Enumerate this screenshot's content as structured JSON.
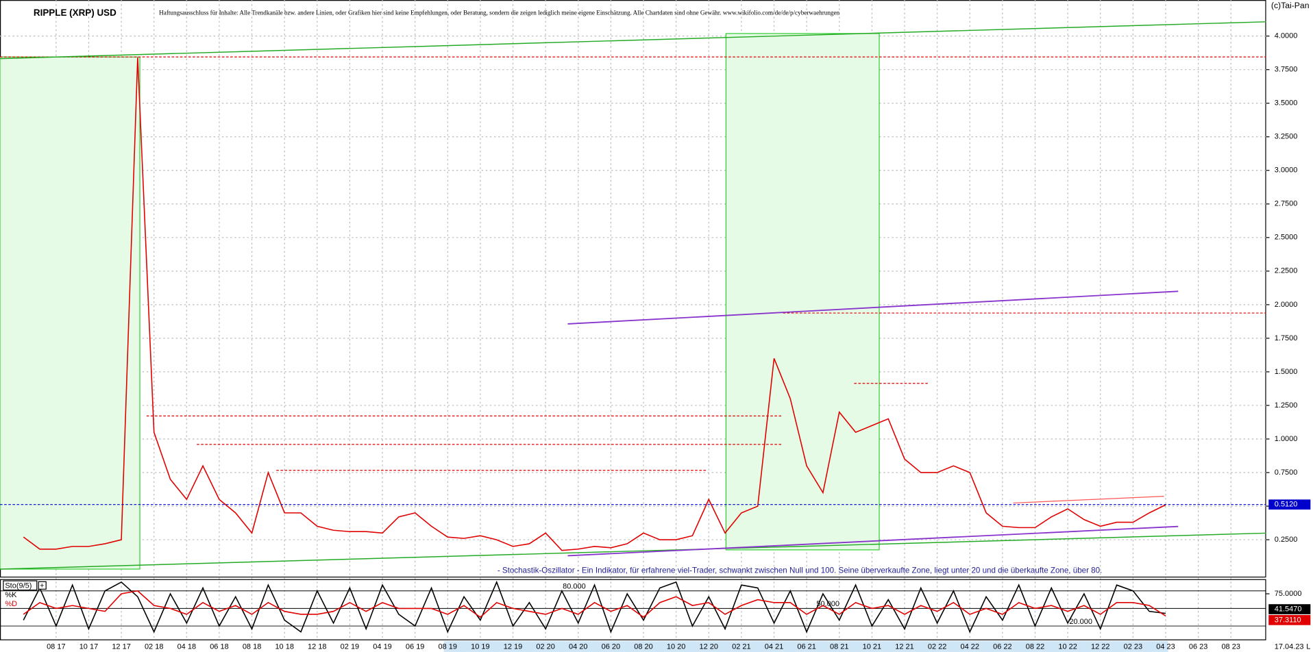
{
  "chart_data": [
    {
      "type": "line",
      "title": "RIPPLE (XRP) USD",
      "subtitle": "Haftungsausschluss für Inhalte: Alle Trendkanäle bzw. andere Linien, oder Grafiken hier sind keine Empfehlungen, oder Beratung, sondern die zeigen lediglich meine eigene Einschätzung. Alle Chartdaten sind ohne Gewähr. www.wikifolio.com/de/de/p/cyberwaehrungen",
      "source": "(c)Tai-Pan",
      "date": "17.04.23",
      "scale_mode": "L",
      "categories": [
        null,
        null,
        "08 17",
        null,
        "10 17",
        null,
        "12 17",
        null,
        "02 18",
        null,
        "04 18",
        null,
        "06 18",
        null,
        "08 18",
        null,
        "10 18",
        null,
        "12 18",
        null,
        "02 19",
        null,
        "04 19",
        null,
        "06 19",
        null,
        "08 19",
        null,
        "10 19",
        null,
        "12 19",
        null,
        "02 20",
        null,
        "04 20",
        null,
        "06 20",
        null,
        "08 20",
        null,
        "10 20",
        null,
        "12 20",
        null,
        "02 21",
        null,
        "04 21",
        null,
        "06 21",
        null,
        "08 21",
        null,
        "10 21",
        null,
        "12 21",
        null,
        "02 22",
        null,
        "04 22",
        null,
        "06 22",
        null,
        "08 22",
        null,
        "10 22",
        null,
        "12 22",
        null,
        "02 23",
        null,
        "04 23",
        null,
        "06 23",
        null,
        "08 23"
      ],
      "series": [
        {
          "name": "XRP",
          "color": "#e00000",
          "values": [
            0.27,
            0.18,
            0.18,
            0.2,
            0.2,
            0.22,
            0.25,
            3.84,
            1.05,
            0.7,
            0.55,
            0.8,
            0.55,
            0.45,
            0.3,
            0.75,
            0.45,
            0.45,
            0.35,
            0.32,
            0.31,
            0.31,
            0.3,
            0.42,
            0.45,
            0.35,
            0.27,
            0.26,
            0.28,
            0.25,
            0.2,
            0.22,
            0.3,
            0.17,
            0.18,
            0.2,
            0.19,
            0.22,
            0.3,
            0.25,
            0.25,
            0.28,
            0.55,
            0.3,
            0.45,
            0.5,
            1.6,
            1.3,
            0.8,
            0.6,
            1.2,
            1.05,
            1.1,
            1.15,
            0.85,
            0.75,
            0.75,
            0.8,
            0.75,
            0.45,
            0.35,
            0.34,
            0.34,
            0.42,
            0.48,
            0.4,
            0.35,
            0.38,
            0.38,
            0.45,
            0.51,
            null,
            null,
            null,
            null
          ]
        }
      ],
      "last_price": {
        "value": 0.512,
        "label": "0.5120",
        "color": "#0000cc"
      },
      "ylim": [
        0,
        4.1
      ],
      "yticks": [
        {
          "value": 0.25,
          "label": "0.2500"
        },
        {
          "value": 0.5,
          "label": "0.5000"
        },
        {
          "value": 0.75,
          "label": "0.7500"
        },
        {
          "value": 1,
          "label": "1.0000"
        },
        {
          "value": 1.25,
          "label": "1.2500"
        },
        {
          "value": 1.5,
          "label": "1.5000"
        },
        {
          "value": 1.75,
          "label": "1.7500"
        },
        {
          "value": 2,
          "label": "2.0000"
        },
        {
          "value": 2.25,
          "label": "2.2500"
        },
        {
          "value": 2.5,
          "label": "2.5000"
        },
        {
          "value": 2.75,
          "label": "2.7500"
        },
        {
          "value": 3,
          "label": "3.0000"
        },
        {
          "value": 3.25,
          "label": "3.2500"
        },
        {
          "value": 3.5,
          "label": "3.5000"
        },
        {
          "value": 3.75,
          "label": "3.7500"
        },
        {
          "value": 4,
          "label": "4.0000"
        }
      ],
      "grid": true
    },
    {
      "type": "line",
      "title": "Sto(9/5)",
      "annotation": "- Stochastik-Oszillator - Ein Indikator, für erfahrene viel-Trader, schwankt zwischen Null und 100. Seine überverkaufte Zone, liegt unter 20 und die überkaufte Zone, über 80.",
      "series": [
        {
          "name": "%K",
          "color": "#000000",
          "last_value_label": "41.5470",
          "values": [
            30,
            85,
            20,
            90,
            15,
            80,
            95,
            70,
            10,
            75,
            25,
            85,
            20,
            70,
            15,
            90,
            30,
            10,
            80,
            25,
            85,
            15,
            90,
            40,
            20,
            85,
            10,
            70,
            30,
            95,
            20,
            60,
            15,
            80,
            25,
            90,
            10,
            75,
            30,
            85,
            95,
            20,
            70,
            15,
            90,
            85,
            25,
            80,
            10,
            75,
            30,
            90,
            20,
            65,
            15,
            85,
            25,
            80,
            10,
            70,
            30,
            90,
            20,
            85,
            25,
            75,
            15,
            90,
            80,
            45,
            41.547,
            null,
            null,
            null,
            null
          ]
        },
        {
          "name": "%D",
          "color": "#e00000",
          "last_value_label": "37.3110",
          "values": [
            40,
            60,
            50,
            55,
            50,
            45,
            75,
            80,
            55,
            50,
            40,
            60,
            45,
            55,
            40,
            60,
            45,
            40,
            40,
            45,
            60,
            45,
            60,
            50,
            50,
            50,
            40,
            55,
            35,
            60,
            50,
            45,
            40,
            50,
            40,
            60,
            45,
            55,
            35,
            60,
            70,
            55,
            60,
            40,
            55,
            65,
            60,
            60,
            40,
            55,
            40,
            60,
            50,
            55,
            40,
            55,
            45,
            60,
            40,
            50,
            40,
            60,
            50,
            55,
            45,
            55,
            40,
            60,
            60,
            55,
            37.311,
            null,
            null,
            null,
            null
          ]
        }
      ],
      "levels": [
        {
          "value": 80,
          "label": "80.000"
        },
        {
          "value": 50,
          "label": "50.000"
        },
        {
          "value": 20,
          "label": "20.000"
        }
      ],
      "ylim": [
        0,
        100
      ],
      "yticks": [
        {
          "value": 75,
          "label": "75.0000"
        }
      ]
    }
  ]
}
